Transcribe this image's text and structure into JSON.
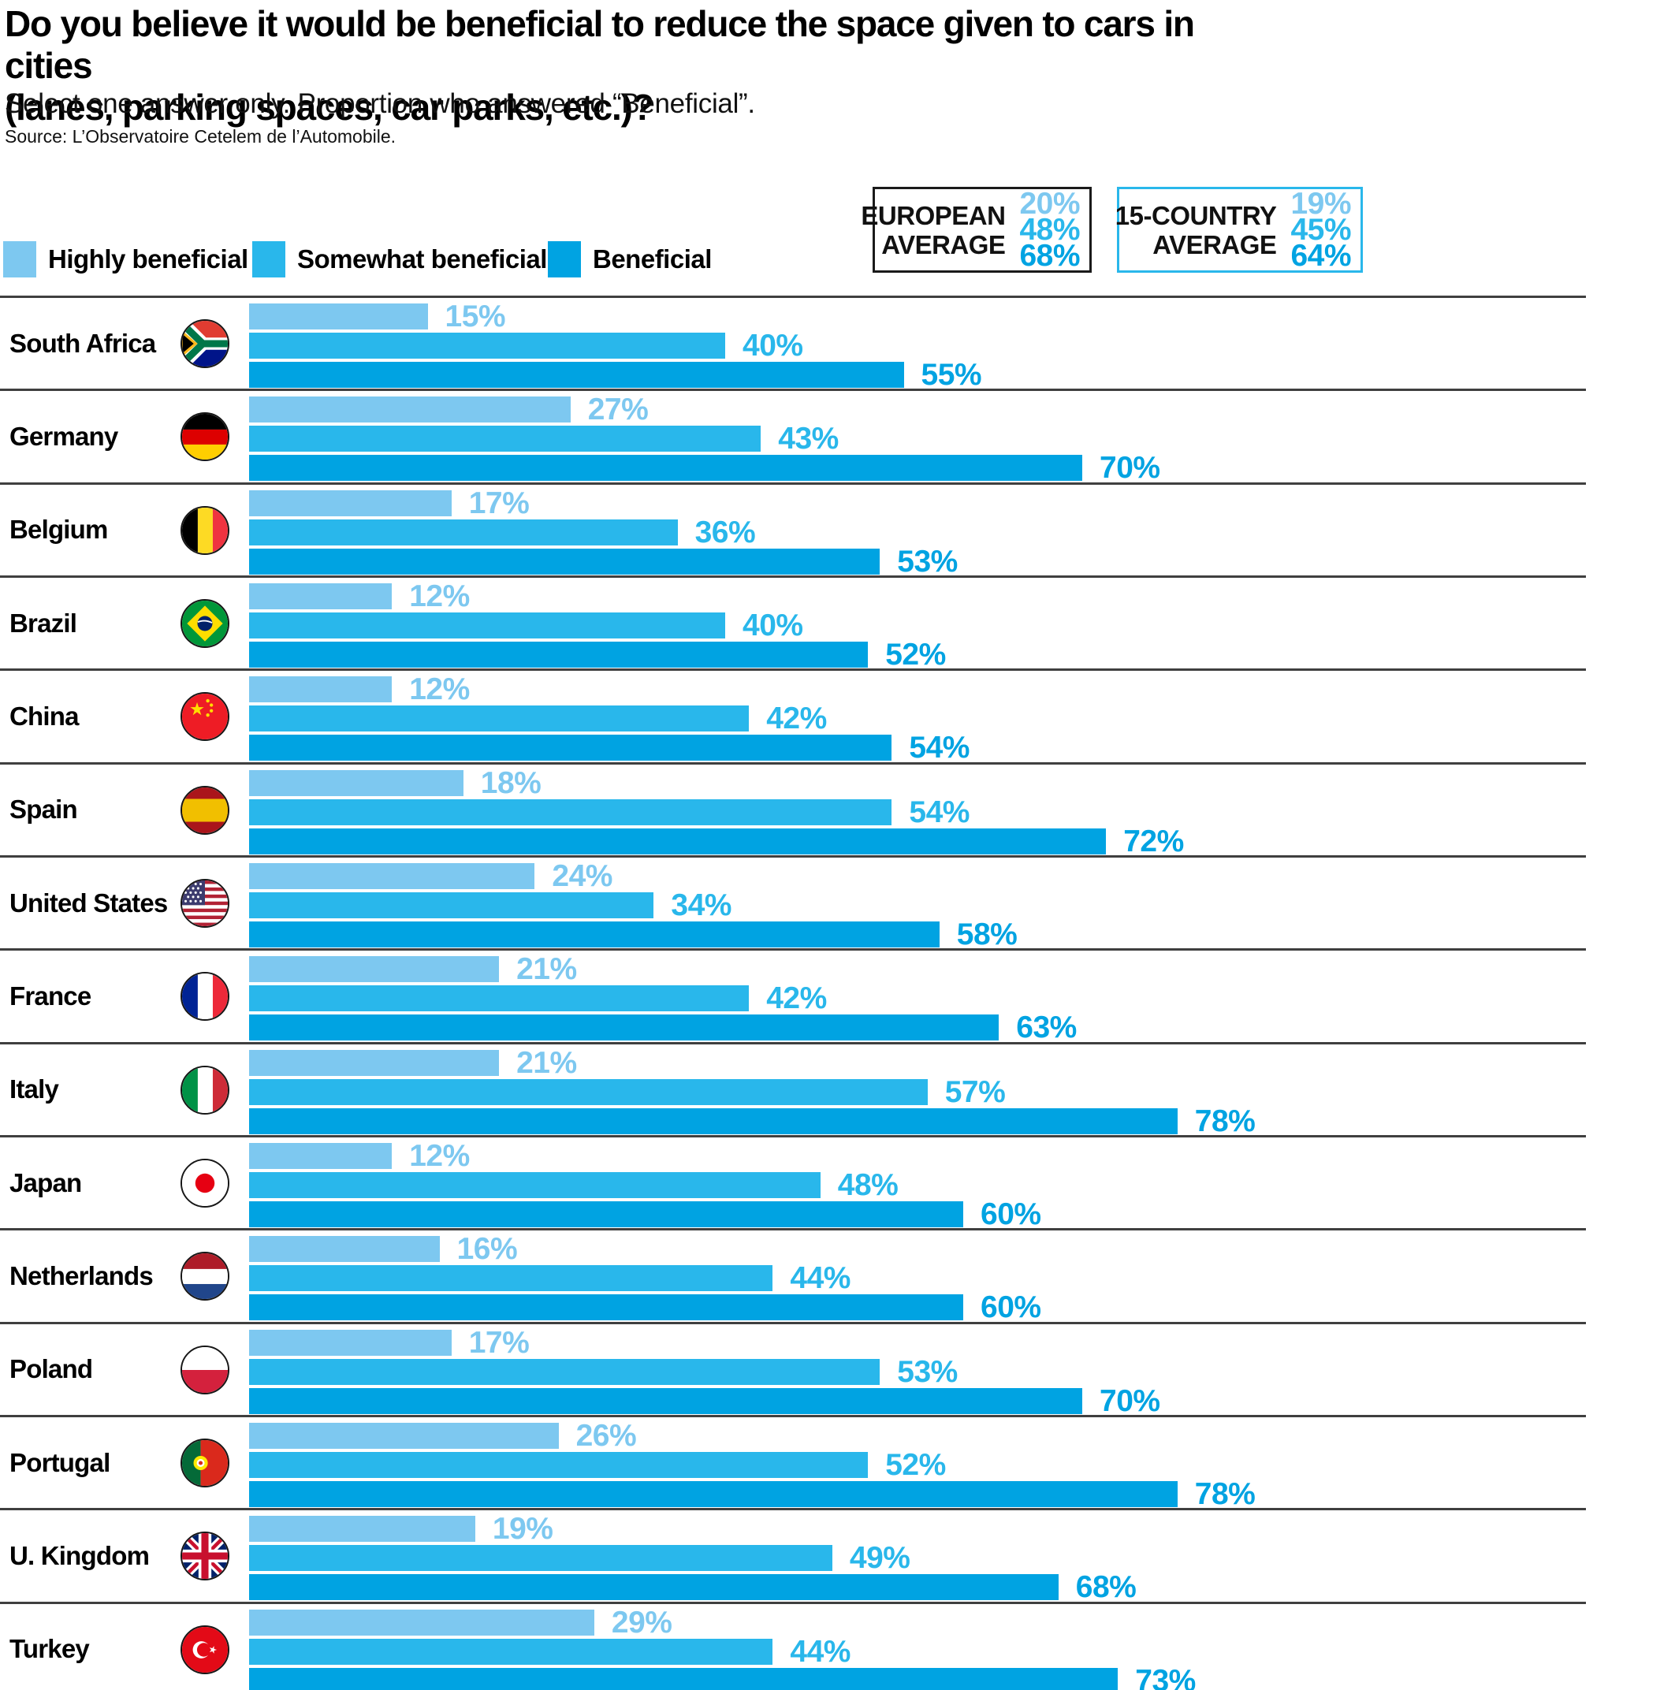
{
  "header": {
    "title_line1": "Do you believe it would be beneficial to reduce the space given to cars in cities",
    "title_line2": "(lanes, parking spaces, car parks, etc.)?",
    "subtitle": "Select one answer only. Proportion who answered “Beneficial”.",
    "source": "Source: L’Observatoire Cetelem de l’Automobile."
  },
  "legend": {
    "items": [
      {
        "label": "Highly beneficial",
        "color": "#7DC8F0"
      },
      {
        "label": "Somewhat beneficial",
        "color": "#29B7EB"
      },
      {
        "label": "Beneficial",
        "color": "#00A3E2"
      }
    ]
  },
  "averages": [
    {
      "label_line1": "EUROPEAN",
      "label_line2": "AVERAGE",
      "values": [
        "20%",
        "48%",
        "68%"
      ]
    },
    {
      "label_line1": "15-COUNTRY",
      "label_line2": "AVERAGE",
      "values": [
        "19%",
        "45%",
        "64%"
      ]
    }
  ],
  "chart_data": {
    "type": "bar",
    "orientation": "horizontal",
    "unit": "%",
    "xlim": [
      0,
      100
    ],
    "series_labels": [
      "Highly beneficial",
      "Somewhat beneficial",
      "Beneficial"
    ],
    "countries": [
      {
        "name": "South Africa",
        "flag": "south-africa",
        "values": [
          15,
          40,
          55
        ]
      },
      {
        "name": "Germany",
        "flag": "germany",
        "values": [
          27,
          43,
          70
        ]
      },
      {
        "name": "Belgium",
        "flag": "belgium",
        "values": [
          17,
          36,
          53
        ]
      },
      {
        "name": "Brazil",
        "flag": "brazil",
        "values": [
          12,
          40,
          52
        ]
      },
      {
        "name": "China",
        "flag": "china",
        "values": [
          12,
          42,
          54
        ]
      },
      {
        "name": "Spain",
        "flag": "spain",
        "values": [
          18,
          54,
          72
        ]
      },
      {
        "name": "United States",
        "flag": "united-states",
        "values": [
          24,
          34,
          58
        ]
      },
      {
        "name": "France",
        "flag": "france",
        "values": [
          21,
          42,
          63
        ]
      },
      {
        "name": "Italy",
        "flag": "italy",
        "values": [
          21,
          57,
          78
        ]
      },
      {
        "name": "Japan",
        "flag": "japan",
        "values": [
          12,
          48,
          60
        ]
      },
      {
        "name": "Netherlands",
        "flag": "netherlands",
        "values": [
          16,
          44,
          60
        ]
      },
      {
        "name": "Poland",
        "flag": "poland",
        "values": [
          17,
          53,
          70
        ]
      },
      {
        "name": "Portugal",
        "flag": "portugal",
        "values": [
          26,
          52,
          78
        ]
      },
      {
        "name": "U. Kingdom",
        "flag": "united-kingdom",
        "values": [
          19,
          49,
          68
        ]
      },
      {
        "name": "Turkey",
        "flag": "turkey",
        "values": [
          29,
          44,
          73
        ]
      }
    ]
  }
}
